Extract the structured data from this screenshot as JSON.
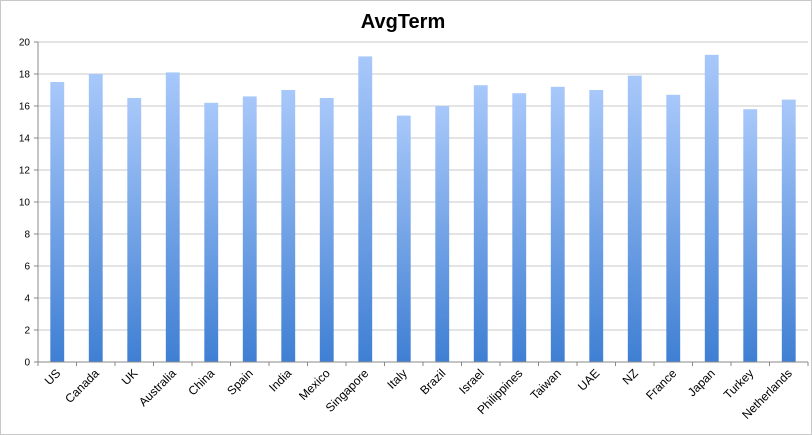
{
  "chart_data": {
    "type": "bar",
    "title": "AvgTerm",
    "xlabel": "",
    "ylabel": "",
    "ylim": [
      0,
      20
    ],
    "yticks": [
      0,
      2,
      4,
      6,
      8,
      10,
      12,
      14,
      16,
      18,
      20
    ],
    "grid": true,
    "legend": "none",
    "bar_color_top": "#a8c8fa",
    "bar_color_bottom": "#3f7fd3",
    "categories": [
      "US",
      "Canada",
      "UK",
      "Australia",
      "China",
      "Spain",
      "India",
      "Mexico",
      "Singapore",
      "Italy",
      "Brazil",
      "Israel",
      "Philippines",
      "Taiwan",
      "UAE",
      "NZ",
      "France",
      "Japan",
      "Turkey",
      "Netherlands"
    ],
    "values": [
      17.5,
      18.0,
      16.5,
      18.1,
      16.2,
      16.6,
      17.0,
      16.5,
      19.1,
      15.4,
      16.0,
      17.3,
      16.8,
      17.2,
      17.0,
      17.9,
      16.7,
      19.2,
      15.8,
      16.4
    ]
  }
}
